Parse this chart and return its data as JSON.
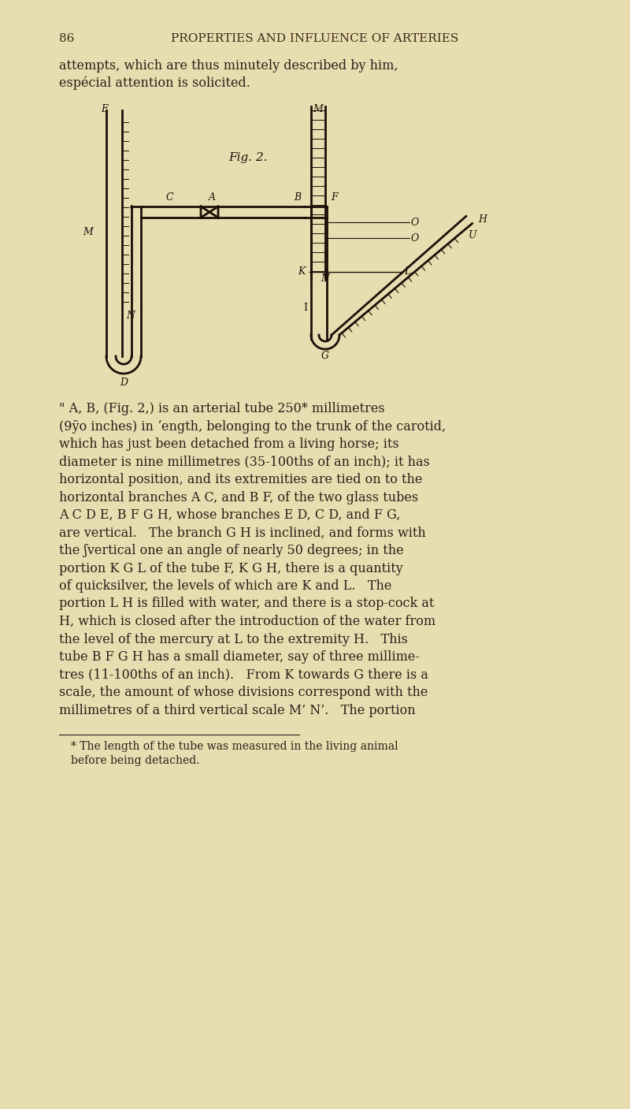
{
  "bg_color": "#e8ddb0",
  "page_number": "86",
  "header": "PROPERTIES AND INFLUENCE OF ARTERIES",
  "intro_text": "attempts, which are thus minutely described by him,\nespécial attention is solicited.",
  "body_text_1": "\" A, B, (Fig. 2,) is an arterial tube 250* millimetres\n(9ÿo inches) in length, belonging to the trunk of the carotid,\nwhich has just been detached from a living horse; its\ndiameter is nine millimetres (35-100ths of an inch); it has\nhorizontal position, and its extremities are tied on to the\nhorizontal branches A C, and B F, of the two glass tubes\nA C D E, B F G H, whose branches E D, C D, and F G,\nare vertical.   The branch G H is inclined, and forms with\nthe [vertical one an angle of nearly 50 degrees; in the\nportion K G L of the tube F, K G H, there is a quantity\nof quicksilver, the levels of which are K and L.   The\nportion L H is filled with water, and there is a stop-cock at\nH, which is closed after the introduction of the water from\nthe level of the mercury at L to the extremity H.   This\ntube B F G H has a small diameter, say of three millime-\ntres (11-100ths of an inch).   From K towards G there is a\nscale, the amount of whose divisions correspond with the\nmillimetres of a third vertical scale M’ N’.   The portion",
  "footnote": "* The length of the tube was measured in the living animal\nbefore being detached.",
  "text_color": "#2a2018",
  "header_color": "#3a2a18"
}
